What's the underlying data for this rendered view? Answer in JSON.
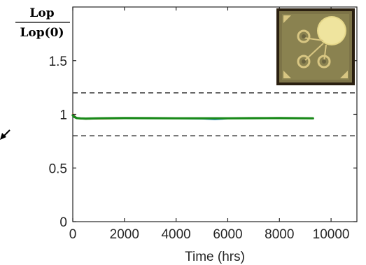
{
  "chart_data": {
    "type": "line",
    "ylabel_numerator": "Lop",
    "ylabel_denominator": "Lop(0)",
    "xlabel": "Time (hrs)",
    "xlim": [
      0,
      11000
    ],
    "ylim": [
      0,
      2
    ],
    "x_ticks": [
      0,
      2000,
      4000,
      6000,
      8000,
      10000
    ],
    "x_tick_labels": [
      "0",
      "2000",
      "4000",
      "6000",
      "8000",
      "10000"
    ],
    "y_ticks": [
      0,
      0.5,
      1,
      1.5
    ],
    "y_tick_labels": [
      "0",
      "0.5",
      "1",
      "1.5"
    ],
    "reference_lines": [
      1.2,
      0.8
    ],
    "series": [
      {
        "color": "#d95319",
        "x": [
          0,
          60,
          150,
          300,
          500,
          1000,
          2000,
          3000,
          4000,
          5000,
          5500,
          6000,
          7000,
          8000,
          9300
        ],
        "y": [
          1.0,
          0.985,
          0.965,
          0.96,
          0.958,
          0.96,
          0.962,
          0.962,
          0.962,
          0.962,
          0.962,
          0.962,
          0.962,
          0.963,
          0.962
        ]
      },
      {
        "color": "#0072bd",
        "x": [
          0,
          60,
          150,
          300,
          500,
          1000,
          2000,
          3000,
          4000,
          5000,
          5500,
          5800,
          6000,
          7000,
          8000,
          9300
        ],
        "y": [
          0.995,
          0.98,
          0.968,
          0.962,
          0.96,
          0.962,
          0.965,
          0.962,
          0.962,
          0.96,
          0.955,
          0.958,
          0.962,
          0.963,
          0.964,
          0.962
        ]
      },
      {
        "color": "#1a8a1a",
        "x": [
          0,
          60,
          150,
          300,
          500,
          1000,
          2000,
          3000,
          4000,
          5000,
          6000,
          7000,
          8000,
          9300
        ],
        "y": [
          0.99,
          0.975,
          0.965,
          0.962,
          0.96,
          0.963,
          0.965,
          0.964,
          0.963,
          0.963,
          0.963,
          0.964,
          0.965,
          0.963
        ]
      }
    ],
    "grid": false,
    "inset_image": "chip-photo",
    "annotation_arrow": "left-pointing-arrow"
  }
}
